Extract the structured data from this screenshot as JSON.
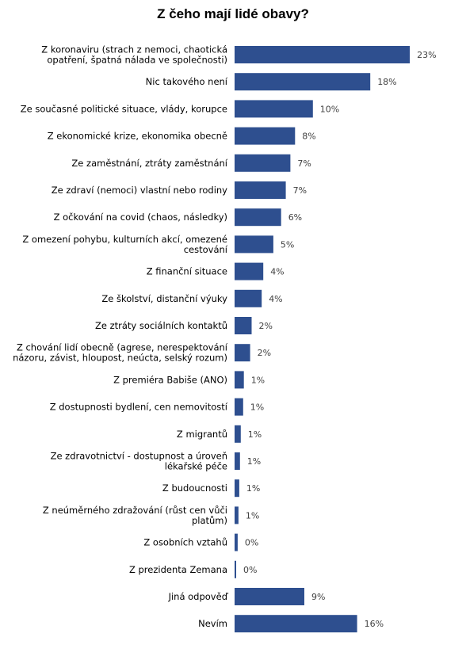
{
  "chart_data": {
    "type": "bar",
    "orientation": "horizontal",
    "title": "Z čeho mají lidé obavy?",
    "xlabel": "",
    "ylabel": "",
    "value_suffix": "%",
    "bar_color": "#2e4f8f",
    "grid": false,
    "legend": "none",
    "categories": [
      [
        "Z koronaviru (strach z nemoci, chaotická",
        "opatření, špatná nálada ve společnosti)"
      ],
      [
        "Nic takového není"
      ],
      [
        "Ze současné politické situace, vlády, korupce"
      ],
      [
        "Z ekonomické krize, ekonomika obecně"
      ],
      [
        "Ze zaměstnání, ztráty zaměstnání"
      ],
      [
        "Ze zdraví (nemoci) vlastní nebo rodiny"
      ],
      [
        "Z očkování na covid (chaos, následky)"
      ],
      [
        "Z omezení pohybu, kulturních akcí, omezené",
        "cestování"
      ],
      [
        "Z finanční situace"
      ],
      [
        "Ze školství, distanční výuky"
      ],
      [
        "Ze ztráty sociálních kontaktů"
      ],
      [
        "Z chování lidí obecně (agrese, nerespektování",
        "názoru, závist, hloupost, neúcta, selský rozum)"
      ],
      [
        "Z premiéra Babiše (ANO)"
      ],
      [
        "Z dostupnosti  bydlení, cen nemovitostí"
      ],
      [
        "Z migrantů"
      ],
      [
        "Ze zdravotnictví - dostupnost a úroveň",
        "lékařské péče"
      ],
      [
        "Z budoucnosti"
      ],
      [
        "Z neúměrného zdražování (růst cen vůči",
        "platům)"
      ],
      [
        "Z osobních vztahů"
      ],
      [
        "Z prezidenta Zemana"
      ],
      [
        "Jiná odpověď"
      ],
      [
        "Nevím"
      ]
    ],
    "values": [
      23,
      18,
      10,
      8,
      7,
      7,
      6,
      5,
      4,
      4,
      2,
      2,
      1,
      1,
      1,
      1,
      1,
      1,
      0,
      0,
      9,
      16
    ],
    "display_values": [
      22.6,
      17.5,
      10.1,
      7.8,
      7.2,
      6.6,
      6.0,
      5.0,
      3.7,
      3.5,
      2.2,
      2.0,
      1.2,
      1.1,
      0.8,
      0.7,
      0.6,
      0.5,
      0.4,
      0.2,
      9.0,
      15.8
    ],
    "xlim": [
      0,
      23
    ]
  }
}
